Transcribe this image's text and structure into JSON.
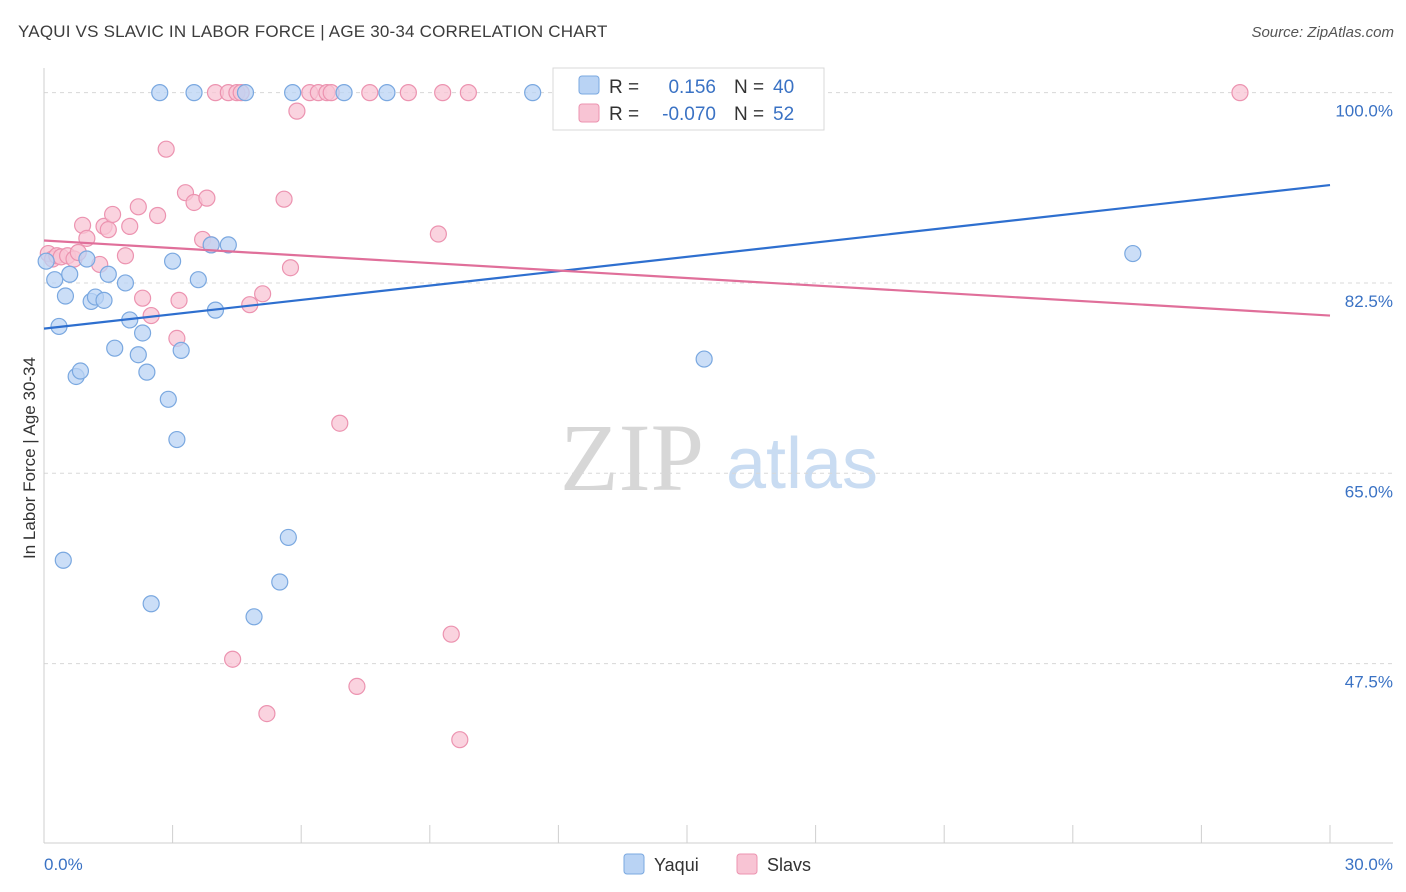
{
  "title": "YAQUI VS SLAVIC IN LABOR FORCE | AGE 30-34 CORRELATION CHART",
  "source": "Source: ZipAtlas.com",
  "watermark": {
    "zip": "ZIP",
    "atlas": "atlas"
  },
  "colors": {
    "yaqui_fill": "#b9d3f4",
    "yaqui_stroke": "#7aa8e0",
    "yaqui_line": "#2e6fcf",
    "slavs_fill": "#f8c4d4",
    "slavs_stroke": "#ec93b0",
    "slavs_line": "#e06f9a",
    "axis_label": "#3a72c4",
    "grid": "#d8d8d8"
  },
  "legend": {
    "r_label": "R =",
    "n_label": "N =",
    "yaqui": {
      "r": "0.156",
      "n": "40"
    },
    "slavs": {
      "r": "-0.070",
      "n": "52"
    }
  },
  "chart_data": {
    "type": "scatter",
    "title": "YAQUI VS SLAVIC IN LABOR FORCE | AGE 30-34 CORRELATION CHART",
    "xlabel": "",
    "ylabel": "In Labor Force | Age 30-34",
    "xlim": [
      0,
      30
    ],
    "ylim": [
      31,
      103
    ],
    "x_tick_labels": {
      "left": "0.0%",
      "right": "30.0%"
    },
    "y_ticks": [
      {
        "value": 100,
        "label": "100.0%"
      },
      {
        "value": 82.5,
        "label": "82.5%"
      },
      {
        "value": 65,
        "label": "65.0%"
      },
      {
        "value": 47.5,
        "label": "47.5%"
      }
    ],
    "grid": true,
    "legend_position": "top-center",
    "series": [
      {
        "name": "Yaqui",
        "trend": {
          "x": [
            0,
            30
          ],
          "y": [
            78.3,
            91.5
          ]
        },
        "points": [
          [
            0.05,
            84.5
          ],
          [
            0.25,
            82.8
          ],
          [
            0.35,
            78.5
          ],
          [
            0.5,
            81.3
          ],
          [
            0.6,
            83.3
          ],
          [
            0.75,
            73.9
          ],
          [
            0.85,
            74.4
          ],
          [
            1.0,
            84.7
          ],
          [
            1.1,
            80.8
          ],
          [
            1.2,
            81.2
          ],
          [
            1.4,
            80.9
          ],
          [
            1.5,
            83.3
          ],
          [
            1.65,
            76.5
          ],
          [
            1.9,
            82.5
          ],
          [
            2.0,
            79.1
          ],
          [
            2.2,
            75.9
          ],
          [
            2.3,
            77.9
          ],
          [
            2.4,
            74.3
          ],
          [
            2.5,
            53.0
          ],
          [
            2.7,
            100.0
          ],
          [
            2.9,
            71.8
          ],
          [
            3.0,
            84.5
          ],
          [
            3.1,
            68.1
          ],
          [
            3.2,
            76.3
          ],
          [
            3.5,
            100.0
          ],
          [
            3.6,
            82.8
          ],
          [
            3.9,
            86.0
          ],
          [
            4.0,
            80.0
          ],
          [
            4.3,
            86.0
          ],
          [
            4.7,
            100.0
          ],
          [
            4.9,
            51.8
          ],
          [
            5.5,
            55.0
          ],
          [
            5.7,
            59.1
          ],
          [
            5.8,
            100.0
          ],
          [
            7.0,
            100.0
          ],
          [
            8.0,
            100.0
          ],
          [
            11.4,
            100.0
          ],
          [
            15.4,
            75.5
          ],
          [
            25.4,
            85.2
          ],
          [
            0.45,
            57.0
          ]
        ]
      },
      {
        "name": "Slavs",
        "trend": {
          "x": [
            0,
            30
          ],
          "y": [
            86.4,
            79.5
          ]
        },
        "points": [
          [
            0.1,
            85.2
          ],
          [
            0.2,
            84.7
          ],
          [
            0.3,
            85.0
          ],
          [
            0.4,
            84.9
          ],
          [
            0.55,
            85.0
          ],
          [
            0.7,
            84.7
          ],
          [
            0.8,
            85.3
          ],
          [
            0.9,
            87.8
          ],
          [
            1.0,
            86.6
          ],
          [
            1.3,
            84.2
          ],
          [
            1.4,
            87.7
          ],
          [
            1.5,
            87.4
          ],
          [
            1.6,
            88.8
          ],
          [
            1.9,
            85.0
          ],
          [
            2.0,
            87.7
          ],
          [
            2.2,
            89.5
          ],
          [
            2.3,
            81.1
          ],
          [
            2.5,
            79.5
          ],
          [
            2.65,
            88.7
          ],
          [
            2.85,
            94.8
          ],
          [
            3.1,
            77.4
          ],
          [
            3.15,
            80.9
          ],
          [
            3.3,
            90.8
          ],
          [
            3.5,
            89.9
          ],
          [
            3.7,
            86.5
          ],
          [
            3.8,
            90.3
          ],
          [
            3.9,
            86.0
          ],
          [
            4.0,
            100.0
          ],
          [
            4.3,
            100.0
          ],
          [
            4.4,
            47.9
          ],
          [
            4.5,
            100.0
          ],
          [
            4.6,
            100.0
          ],
          [
            4.8,
            80.5
          ],
          [
            5.1,
            81.5
          ],
          [
            5.2,
            42.9
          ],
          [
            5.6,
            90.2
          ],
          [
            5.75,
            83.9
          ],
          [
            5.9,
            98.3
          ],
          [
            6.2,
            100.0
          ],
          [
            6.4,
            100.0
          ],
          [
            6.6,
            100.0
          ],
          [
            6.7,
            100.0
          ],
          [
            6.9,
            69.6
          ],
          [
            7.3,
            45.4
          ],
          [
            7.6,
            100.0
          ],
          [
            8.5,
            100.0
          ],
          [
            9.2,
            87.0
          ],
          [
            9.3,
            100.0
          ],
          [
            9.5,
            50.2
          ],
          [
            9.7,
            40.5
          ],
          [
            9.9,
            100.0
          ],
          [
            27.9,
            100.0
          ]
        ]
      }
    ]
  }
}
